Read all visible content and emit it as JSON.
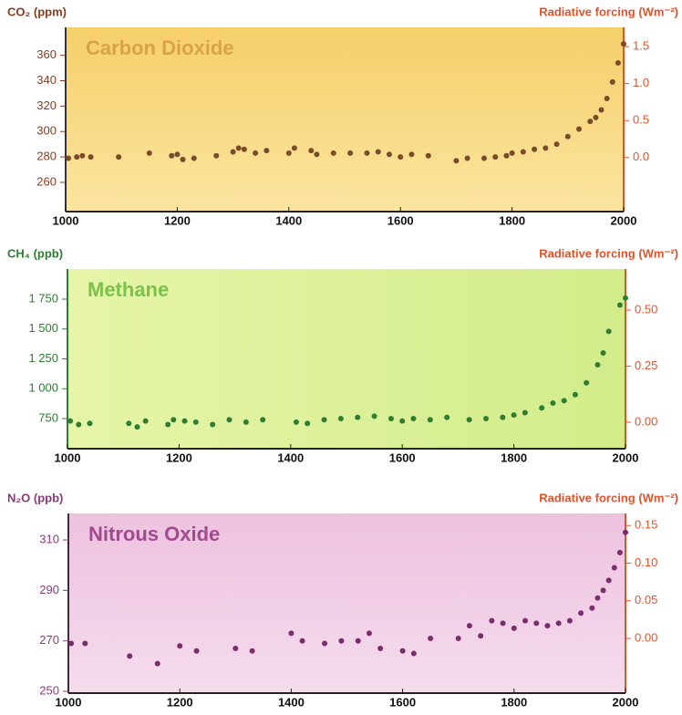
{
  "chart_data": [
    {
      "type": "scatter",
      "title": "Carbon Dioxide",
      "y_label": "CO₂ (ppm)",
      "y2_label": "Radiative forcing (Wm⁻²)",
      "x": [
        1005,
        1020,
        1030,
        1045,
        1095,
        1150,
        1190,
        1200,
        1210,
        1230,
        1270,
        1300,
        1310,
        1320,
        1340,
        1360,
        1400,
        1410,
        1440,
        1450,
        1480,
        1510,
        1540,
        1560,
        1580,
        1600,
        1620,
        1650,
        1700,
        1720,
        1750,
        1770,
        1790,
        1800,
        1820,
        1840,
        1860,
        1880,
        1900,
        1920,
        1940,
        1950,
        1960,
        1970,
        1980,
        1990,
        2000
      ],
      "series": [
        {
          "color": "#7a4a2a",
          "values": [
            279,
            280,
            281,
            280,
            280,
            283,
            281,
            282,
            278,
            279,
            281,
            284,
            287,
            286,
            283,
            285,
            283,
            287,
            285,
            282,
            283,
            283,
            283,
            284,
            282,
            280,
            282,
            281,
            277,
            279,
            279,
            280,
            281,
            283,
            284,
            286,
            287,
            290,
            296,
            302,
            308,
            311,
            317,
            326,
            339,
            354,
            369
          ]
        }
      ],
      "xlim": [
        1000,
        2000
      ],
      "xticks": [
        1000,
        1200,
        1400,
        1600,
        1800,
        2000
      ],
      "ylim": [
        237,
        382
      ],
      "yticks": [
        260,
        280,
        300,
        320,
        340,
        360
      ],
      "y2lim": [
        -0.73,
        1.76
      ],
      "y2ticks": [
        {
          "value": 0,
          "label": "0.0"
        },
        {
          "value": 0.5,
          "label": "0.5"
        },
        {
          "value": 1,
          "label": "1.0"
        },
        {
          "value": 1.5,
          "label": "1.5"
        }
      ]
    },
    {
      "type": "scatter",
      "title": "Methane",
      "y_label": "CH₄ (ppb)",
      "y2_label": "Radiative forcing (Wm⁻²)",
      "x": [
        1005,
        1020,
        1040,
        1110,
        1125,
        1140,
        1180,
        1190,
        1210,
        1230,
        1260,
        1290,
        1320,
        1350,
        1410,
        1430,
        1460,
        1490,
        1520,
        1550,
        1580,
        1600,
        1620,
        1650,
        1680,
        1720,
        1750,
        1780,
        1800,
        1820,
        1850,
        1870,
        1890,
        1910,
        1930,
        1950,
        1960,
        1970,
        1990,
        2000
      ],
      "series": [
        {
          "color": "#2e7d32",
          "values": [
            730,
            700,
            710,
            710,
            680,
            730,
            700,
            740,
            730,
            720,
            700,
            740,
            720,
            740,
            720,
            710,
            740,
            750,
            760,
            770,
            750,
            730,
            750,
            740,
            760,
            740,
            750,
            760,
            780,
            800,
            840,
            880,
            900,
            950,
            1050,
            1200,
            1300,
            1480,
            1700,
            1760
          ]
        }
      ],
      "xlim": [
        1000,
        2000
      ],
      "xticks": [
        1000,
        1200,
        1400,
        1600,
        1800,
        2000
      ],
      "ylim": [
        498,
        2002
      ],
      "yticks": [
        750,
        {
          "value": 1000,
          "label": "1 000"
        },
        {
          "value": 1250,
          "label": "1 250"
        },
        {
          "value": 1500,
          "label": "1 500"
        },
        {
          "value": 1750,
          "label": "1 750"
        }
      ],
      "y2lim": [
        -0.118,
        0.683
      ],
      "y2ticks": [
        {
          "value": 0,
          "label": "0.00"
        },
        0.25,
        {
          "value": 0.5,
          "label": "0.50"
        }
      ]
    },
    {
      "type": "scatter",
      "title": "Nitrous Oxide",
      "y_label": "N₂O (ppb)",
      "y2_label": "Radiative forcing (Wm⁻²)",
      "x": [
        1005,
        1030,
        1110,
        1160,
        1200,
        1230,
        1300,
        1330,
        1400,
        1420,
        1460,
        1490,
        1520,
        1540,
        1560,
        1600,
        1620,
        1650,
        1700,
        1720,
        1740,
        1760,
        1780,
        1800,
        1820,
        1840,
        1860,
        1880,
        1900,
        1920,
        1940,
        1950,
        1960,
        1970,
        1980,
        1990,
        2000
      ],
      "series": [
        {
          "color": "#7b2c6c",
          "values": [
            269,
            269,
            264,
            261,
            268,
            266,
            267,
            266,
            273,
            270,
            269,
            270,
            270,
            273,
            267,
            266,
            265,
            271,
            271,
            276,
            272,
            278,
            277,
            275,
            278,
            277,
            276,
            277,
            278,
            281,
            283,
            287,
            290,
            294,
            299,
            305,
            313
          ]
        }
      ],
      "xlim": [
        1000,
        2000
      ],
      "xticks": [
        1000,
        1200,
        1400,
        1600,
        1800,
        2000
      ],
      "ylim": [
        249.3,
        320.5
      ],
      "yticks": [
        250,
        270,
        290,
        310
      ],
      "y2lim": [
        -0.0726,
        0.166
      ],
      "y2ticks": [
        {
          "value": 0,
          "label": "0.00"
        },
        0.05,
        {
          "value": 0.1,
          "label": "0.10"
        },
        0.15
      ]
    }
  ]
}
